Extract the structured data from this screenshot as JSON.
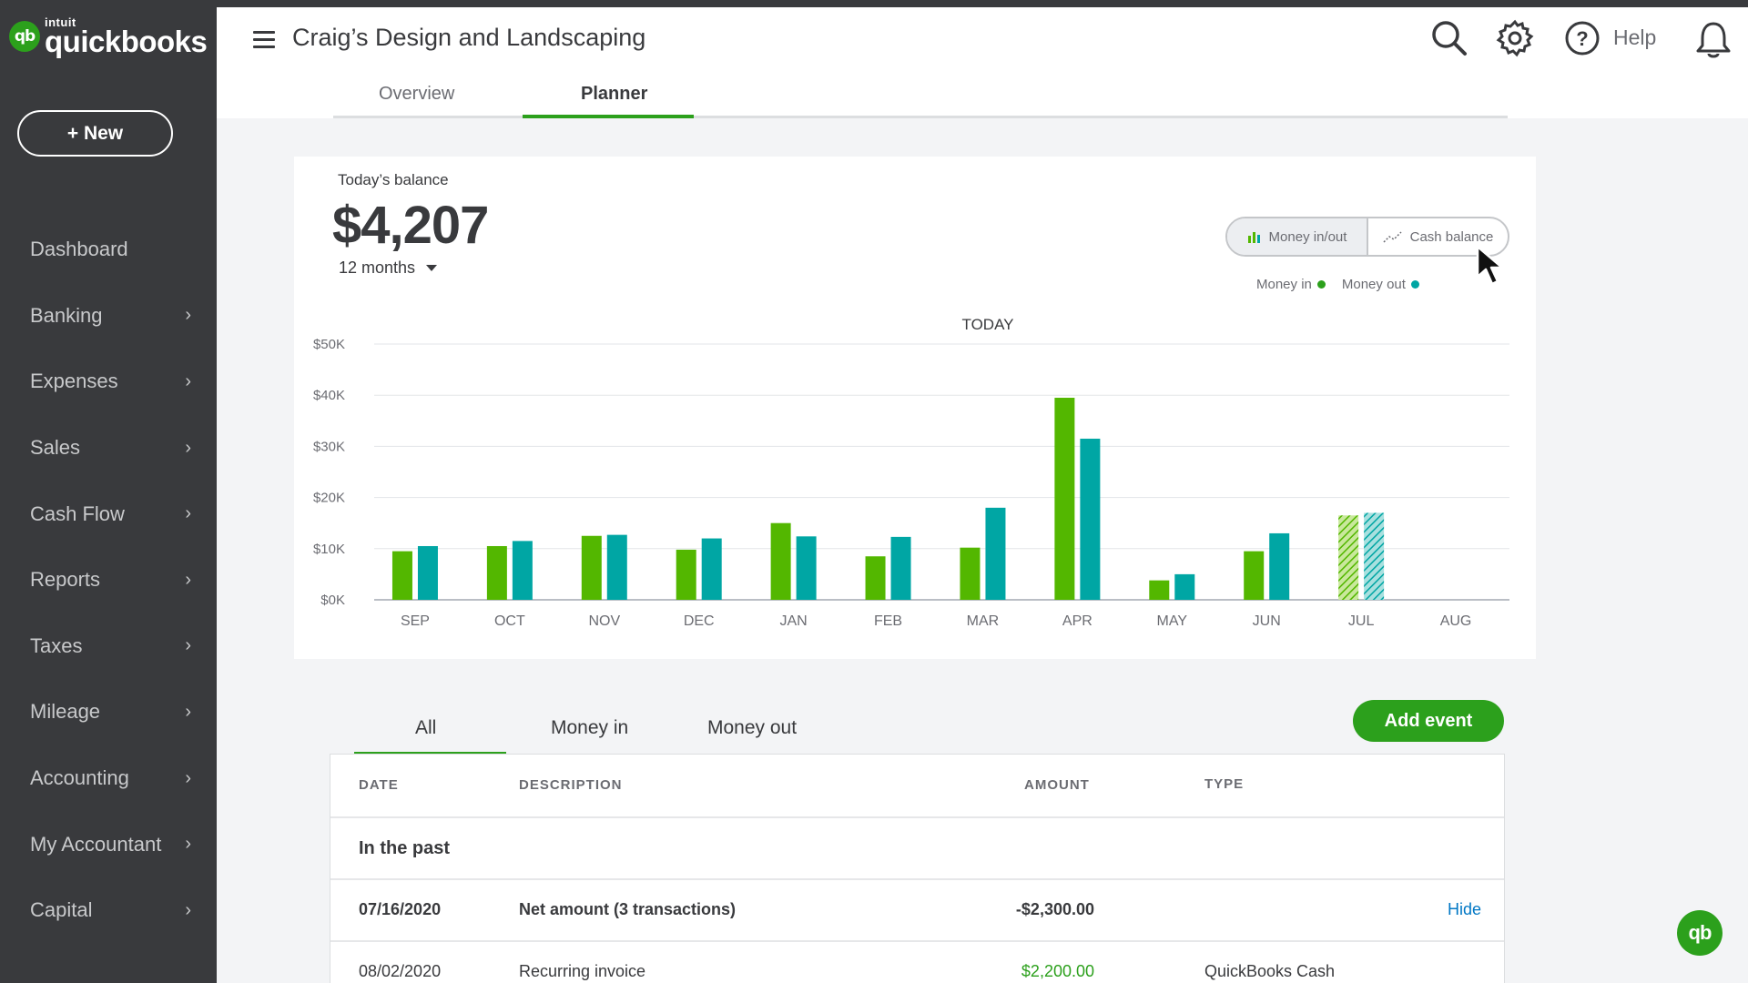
{
  "brand": {
    "intuit": "intuit",
    "name": "quickbooks",
    "mark": "qb"
  },
  "sidebar": {
    "new_label": "+ New",
    "items": [
      {
        "label": "Dashboard",
        "has_chevron": false
      },
      {
        "label": "Banking",
        "has_chevron": true
      },
      {
        "label": "Expenses",
        "has_chevron": true
      },
      {
        "label": "Sales",
        "has_chevron": true
      },
      {
        "label": "Cash Flow",
        "has_chevron": true
      },
      {
        "label": "Reports",
        "has_chevron": true
      },
      {
        "label": "Taxes",
        "has_chevron": true
      },
      {
        "label": "Mileage",
        "has_chevron": true
      },
      {
        "label": "Accounting",
        "has_chevron": true
      },
      {
        "label": "My Accountant",
        "has_chevron": true
      },
      {
        "label": "Capital",
        "has_chevron": true
      }
    ]
  },
  "header": {
    "company": "Craig’s Design and Landscaping",
    "help_label": "Help",
    "icons": [
      "menu-icon",
      "search-icon",
      "gear-icon",
      "help-icon",
      "bell-icon"
    ],
    "tabs": [
      {
        "label": "Overview",
        "active": false
      },
      {
        "label": "Planner",
        "active": true
      }
    ]
  },
  "balance": {
    "label": "Today’s balance",
    "value": "$4,207",
    "period": "12 months"
  },
  "toggle": {
    "money_inout": "Money in/out",
    "cash_balance": "Cash balance"
  },
  "legend": {
    "money_in": "Money in",
    "money_out": "Money out"
  },
  "colors": {
    "money_in": "#53b700",
    "money_out": "#00a6a4",
    "brand_green": "#2ca01c",
    "sidebar": "#393a3d",
    "link": "#0077c5"
  },
  "chart_data": {
    "type": "bar",
    "annotation": "TODAY",
    "categories": [
      "SEP",
      "OCT",
      "NOV",
      "DEC",
      "JAN",
      "FEB",
      "MAR",
      "APR",
      "MAY",
      "JUN",
      "JUL",
      "AUG"
    ],
    "series": [
      {
        "name": "Money in",
        "values": [
          9500,
          10500,
          12500,
          9800,
          15000,
          8500,
          10200,
          39500,
          3800,
          9500,
          16500,
          null
        ]
      },
      {
        "name": "Money out",
        "values": [
          10500,
          11500,
          12700,
          12000,
          12400,
          12300,
          18000,
          31500,
          5000,
          13000,
          17000,
          null
        ]
      }
    ],
    "projected_from": "JUL",
    "ylim": [
      0,
      50000
    ],
    "yticks": [
      "$0K",
      "$10K",
      "$20K",
      "$30K",
      "$40K",
      "$50K"
    ],
    "ytick_values": [
      0,
      10000,
      20000,
      30000,
      40000,
      50000
    ],
    "grid": true,
    "legend": "top-right"
  },
  "events": {
    "tabs": [
      "All",
      "Money in",
      "Money out"
    ],
    "add_label": "Add event",
    "columns": {
      "date": "DATE",
      "description": "DESCRIPTION",
      "amount": "AMOUNT",
      "type": "TYPE"
    },
    "group": "In the past",
    "rows": [
      {
        "date": "07/16/2020",
        "description": "Net amount (3 transactions)",
        "amount": "-$2,300.00",
        "type": "",
        "action": "Hide"
      },
      {
        "date": "08/02/2020",
        "description": "Recurring invoice",
        "amount": "$2,200.00",
        "type": "QuickBooks Cash",
        "action": ""
      }
    ]
  }
}
